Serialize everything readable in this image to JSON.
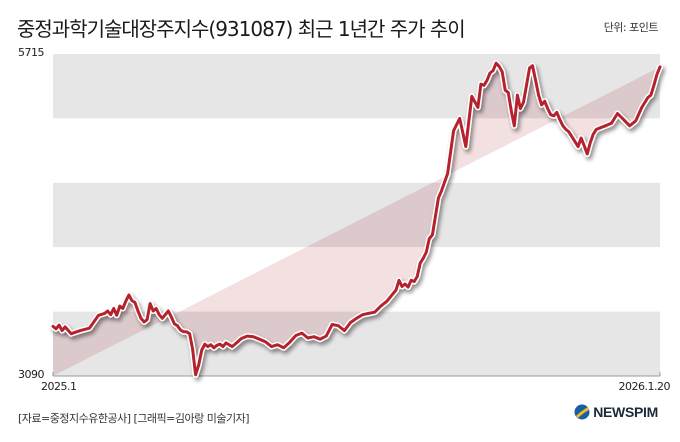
{
  "header": {
    "title": "중정과학기술대장주지수(931087) 최근 1년간 주가 추이",
    "unit": "단위: 포인트"
  },
  "footer": {
    "source": "[자료=중정지수유한공사] [그래픽=김아랑 미술기자]",
    "logo": "NEWSPIM",
    "logo_icon": "newspim-globe-icon"
  },
  "colors": {
    "line": "#b5222d",
    "band_gray": "#e6e6e6",
    "band_white": "#ffffff",
    "fill_on_gray": "#dcc9cb",
    "fill_on_white": "#f3e0e1",
    "logo_blue": "#1a5ea8",
    "logo_yellow": "#f2c01e"
  },
  "axes": {
    "y_max_label": "5715",
    "y_min_label": "3090",
    "x_start_label": "2025.1",
    "x_end_label": "2026.1.20"
  },
  "chart_data": {
    "type": "area",
    "title": "중정과학기술대장주지수(931087) 최근 1년간 주가 추이",
    "xlabel": "",
    "ylabel": "단위: 포인트",
    "ylim": [
      3090,
      5715
    ],
    "xlim": [
      "2025.1",
      "2026.1.20"
    ],
    "grid": "alternating horizontal bands",
    "legend": "none",
    "series": [
      {
        "name": "중정과학기술대장주지수(931087)",
        "x_frac": [
          0.0,
          0.005,
          0.01,
          0.015,
          0.02,
          0.03,
          0.045,
          0.06,
          0.075,
          0.085,
          0.09,
          0.095,
          0.1,
          0.105,
          0.11,
          0.115,
          0.12,
          0.125,
          0.13,
          0.135,
          0.14,
          0.145,
          0.15,
          0.155,
          0.16,
          0.165,
          0.17,
          0.175,
          0.18,
          0.19,
          0.195,
          0.2,
          0.205,
          0.21,
          0.215,
          0.22,
          0.225,
          0.23,
          0.235,
          0.24,
          0.245,
          0.25,
          0.255,
          0.26,
          0.265,
          0.27,
          0.275,
          0.28,
          0.285,
          0.29,
          0.295,
          0.3,
          0.31,
          0.32,
          0.33,
          0.34,
          0.35,
          0.36,
          0.37,
          0.38,
          0.39,
          0.4,
          0.41,
          0.42,
          0.43,
          0.44,
          0.45,
          0.46,
          0.47,
          0.48,
          0.49,
          0.5,
          0.51,
          0.52,
          0.53,
          0.54,
          0.55,
          0.56,
          0.565,
          0.57,
          0.575,
          0.58,
          0.585,
          0.59,
          0.595,
          0.6,
          0.605,
          0.61,
          0.615,
          0.62,
          0.625,
          0.63,
          0.635,
          0.64,
          0.65,
          0.66,
          0.67,
          0.68,
          0.69,
          0.7,
          0.705,
          0.71,
          0.715,
          0.72,
          0.725,
          0.73,
          0.735,
          0.74,
          0.745,
          0.75,
          0.755,
          0.76,
          0.765,
          0.77,
          0.775,
          0.78,
          0.785,
          0.79,
          0.795,
          0.8,
          0.805,
          0.81,
          0.815,
          0.82,
          0.825,
          0.83,
          0.835,
          0.84,
          0.845,
          0.85,
          0.855,
          0.86,
          0.865,
          0.87,
          0.875,
          0.88,
          0.885,
          0.89,
          0.895,
          0.9,
          0.91,
          0.92,
          0.93,
          0.94,
          0.95,
          0.96,
          0.97,
          0.975,
          0.98,
          0.985,
          0.99,
          0.995,
          1.0
        ],
        "values": [
          3495,
          3475,
          3505,
          3460,
          3490,
          3435,
          3460,
          3480,
          3585,
          3600,
          3620,
          3590,
          3640,
          3585,
          3660,
          3640,
          3700,
          3750,
          3705,
          3690,
          3620,
          3560,
          3530,
          3550,
          3680,
          3620,
          3640,
          3590,
          3560,
          3620,
          3570,
          3515,
          3500,
          3465,
          3450,
          3450,
          3435,
          3310,
          3100,
          3180,
          3300,
          3350,
          3330,
          3345,
          3320,
          3340,
          3350,
          3330,
          3360,
          3345,
          3330,
          3350,
          3395,
          3415,
          3410,
          3390,
          3370,
          3330,
          3345,
          3320,
          3365,
          3420,
          3440,
          3400,
          3410,
          3390,
          3415,
          3510,
          3500,
          3460,
          3525,
          3560,
          3590,
          3600,
          3610,
          3660,
          3700,
          3760,
          3790,
          3870,
          3820,
          3840,
          3815,
          3870,
          3860,
          3900,
          4010,
          4050,
          4100,
          4210,
          4240,
          4390,
          4540,
          4600,
          4740,
          5090,
          5190,
          4960,
          5370,
          5280,
          5470,
          5460,
          5500,
          5560,
          5580,
          5640,
          5615,
          5570,
          5420,
          5400,
          5250,
          5130,
          5380,
          5270,
          5320,
          5460,
          5600,
          5620,
          5500,
          5380,
          5300,
          5330,
          5270,
          5220,
          5210,
          5240,
          5180,
          5130,
          5100,
          5080,
          5040,
          5000,
          4960,
          5030,
          4970,
          4900,
          4990,
          5060,
          5100,
          5110,
          5130,
          5150,
          5230,
          5180,
          5130,
          5170,
          5280,
          5320,
          5360,
          5380,
          5460,
          5550,
          5610,
          5560,
          5640,
          5600,
          5700,
          5680,
          5620
        ]
      }
    ]
  }
}
